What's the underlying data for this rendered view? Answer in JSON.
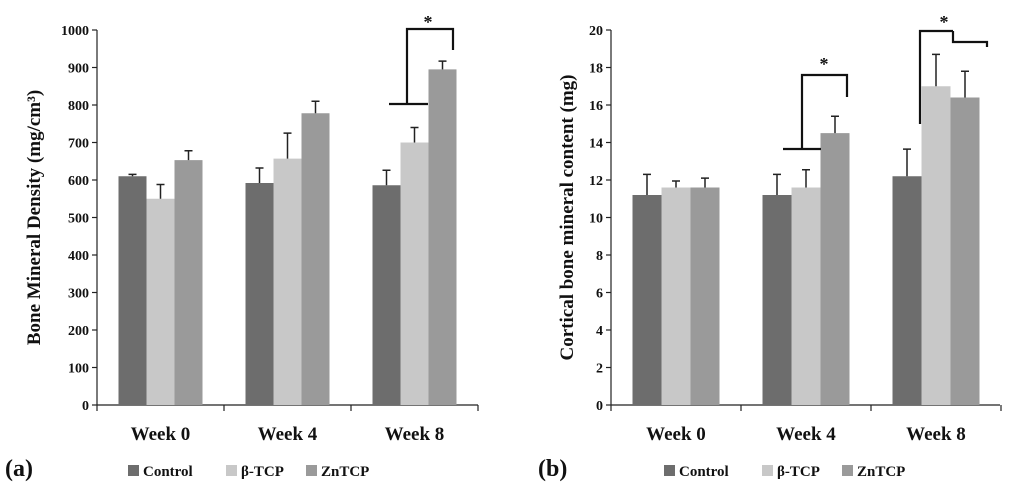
{
  "colors": {
    "control": "#6d6d6d",
    "btcp": "#c8c8c8",
    "zntcp": "#9a9a9a",
    "axis": "#222222"
  },
  "chart_data": [
    {
      "type": "bar",
      "panel_label": "(a)",
      "ylabel": "Bone Mineral Density (mg/cm³)",
      "categories": [
        "Week 0",
        "Week 4",
        "Week 8"
      ],
      "ylim": [
        0,
        1000
      ],
      "yticks": [
        "0",
        "100",
        "200",
        "300",
        "400",
        "500",
        "600",
        "700",
        "800",
        "900",
        "1000"
      ],
      "series": [
        {
          "name": "Control",
          "values": [
            610,
            592,
            586
          ],
          "errors": [
            5,
            40,
            40
          ]
        },
        {
          "name": "β-TCP",
          "values": [
            550,
            657,
            700
          ],
          "errors": [
            38,
            68,
            40
          ]
        },
        {
          "name": "ZnTCP",
          "values": [
            653,
            778,
            895
          ],
          "errors": [
            25,
            32,
            22
          ]
        }
      ],
      "annotations": [
        "*"
      ]
    },
    {
      "type": "bar",
      "panel_label": "(b)",
      "ylabel": "Cortical bone mineral content (mg)",
      "categories": [
        "Week 0",
        "Week 4",
        "Week 8"
      ],
      "ylim": [
        0,
        20
      ],
      "yticks": [
        "0",
        "2",
        "4",
        "6",
        "8",
        "10",
        "12",
        "14",
        "16",
        "18",
        "20"
      ],
      "series": [
        {
          "name": "Control",
          "values": [
            11.2,
            11.2,
            12.2
          ],
          "errors": [
            1.1,
            1.1,
            1.45
          ]
        },
        {
          "name": "β-TCP",
          "values": [
            11.6,
            11.6,
            17.0
          ],
          "errors": [
            0.35,
            0.95,
            1.7
          ]
        },
        {
          "name": "ZnTCP",
          "values": [
            11.6,
            14.5,
            16.4
          ],
          "errors": [
            0.5,
            0.9,
            1.4
          ]
        }
      ],
      "annotations": [
        "*",
        "*"
      ]
    }
  ]
}
